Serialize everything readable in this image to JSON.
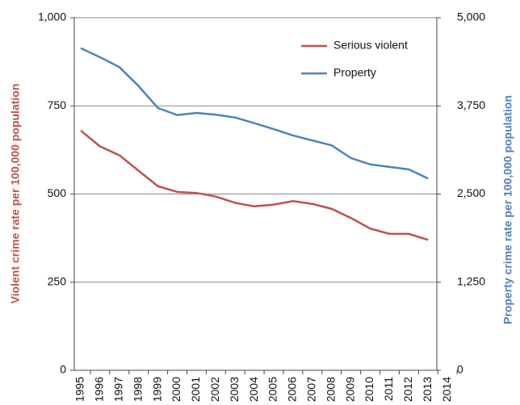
{
  "chart_data": {
    "type": "line",
    "categories": [
      "1995",
      "1996",
      "1997",
      "1998",
      "1999",
      "2000",
      "2001",
      "2002",
      "2003",
      "2004",
      "2005",
      "2006",
      "2007",
      "2008",
      "2009",
      "2010",
      "2011",
      "2012",
      "2013",
      "2014"
    ],
    "series": [
      {
        "name": "Serious violent",
        "color": "#c0504d",
        "axis": "y",
        "values": [
          680,
          635,
          610,
          566,
          522,
          506,
          503,
          493,
          475,
          465,
          470,
          480,
          472,
          458,
          432,
          402,
          387,
          387,
          370,
          null
        ]
      },
      {
        "name": "Property",
        "color": "#4f81bd",
        "axis": "y2",
        "values": [
          4570,
          4440,
          4300,
          4030,
          3720,
          3620,
          3650,
          3625,
          3585,
          3505,
          3420,
          3330,
          3260,
          3190,
          3010,
          2920,
          2885,
          2850,
          2720,
          null
        ]
      }
    ],
    "ylabel": "Violent crime rate per 100,000 population",
    "y2label": "Property crime rate per 100,000 population",
    "ylim": [
      0,
      1000
    ],
    "yticks": [
      0,
      250,
      500,
      750,
      {
        "value": 1000,
        "label": "1,000"
      }
    ],
    "y2lim": [
      0,
      5000
    ],
    "y2ticks": [
      0,
      {
        "value": 1250,
        "label": "1,250"
      },
      {
        "value": 2500,
        "label": "2,500"
      },
      {
        "value": 3750,
        "label": "3,750"
      },
      {
        "value": 5000,
        "label": "5,000"
      }
    ],
    "grid": true,
    "legend": "upper right"
  }
}
